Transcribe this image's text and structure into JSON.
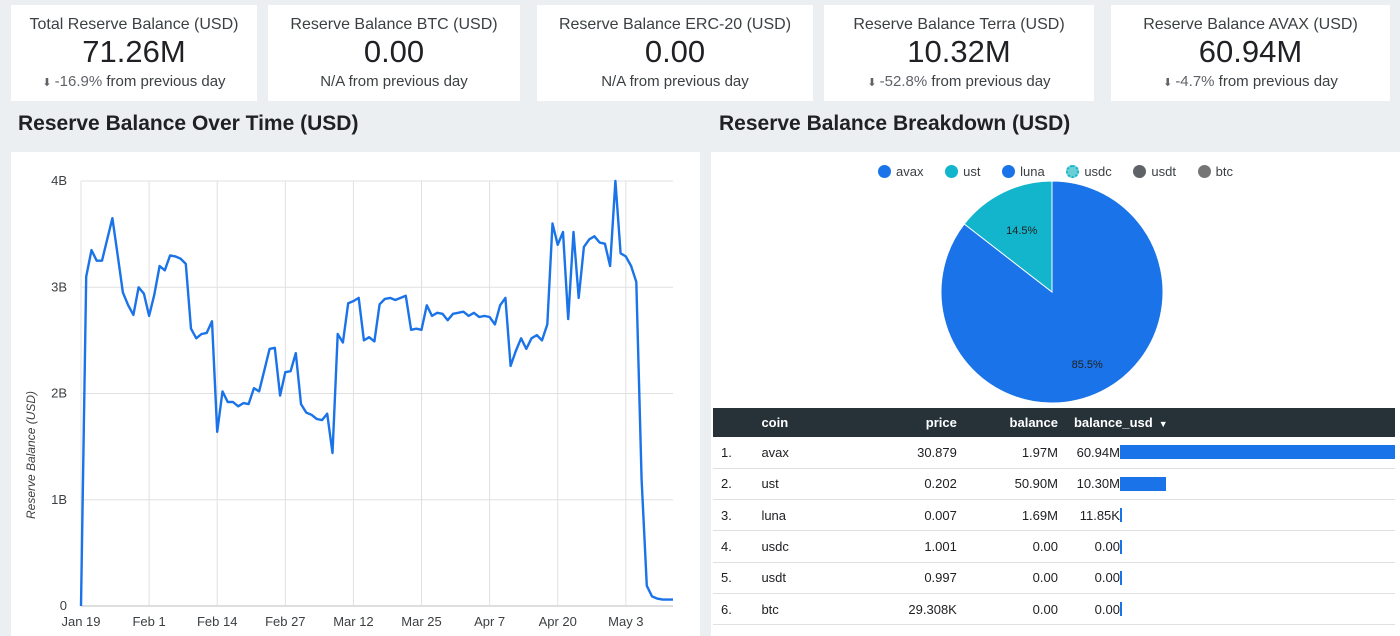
{
  "kpis": [
    {
      "title": "Total Reserve Balance (USD)",
      "value": "71.26M",
      "arrow": "down-arrow-icon",
      "delta": "-16.9%",
      "suffix": "from previous day"
    },
    {
      "title": "Reserve Balance BTC (USD)",
      "value": "0.00",
      "arrow": "",
      "delta": "N/A",
      "suffix": "from previous day"
    },
    {
      "title": "Reserve Balance ERC-20 (USD)",
      "value": "0.00",
      "arrow": "",
      "delta": "N/A",
      "suffix": "from previous day"
    },
    {
      "title": "Reserve Balance Terra (USD)",
      "value": "10.32M",
      "arrow": "down-arrow-icon",
      "delta": "-52.8%",
      "suffix": "from previous day"
    },
    {
      "title": "Reserve Balance AVAX (USD)",
      "value": "60.94M",
      "arrow": "down-arrow-icon",
      "delta": "-4.7%",
      "suffix": "from previous day"
    }
  ],
  "arrow_glyph": "⬇",
  "sections": {
    "left_title": "Reserve Balance Over Time (USD)",
    "right_title": "Reserve Balance Breakdown (USD)"
  },
  "colors": {
    "line": "#1a73e8",
    "avax": "#1a73e8",
    "ust": "#12b5cb",
    "luna": "#1a73e8",
    "usdc": "#6ccfd6",
    "usdt": "#5f6368",
    "btc": "#757575",
    "header": "#263238"
  },
  "chart_data": [
    {
      "type": "line",
      "ylabel": "Reserve Balance (USD)",
      "xlabel": "",
      "y_ticks": [
        "0",
        "1B",
        "2B",
        "3B",
        "4B"
      ],
      "ylim": [
        0,
        4000000000
      ],
      "x_ticks": [
        "Jan 19",
        "Feb 1",
        "Feb 14",
        "Feb 27",
        "Mar 12",
        "Mar 25",
        "Apr 7",
        "Apr 20",
        "May 3"
      ],
      "grid": true,
      "series": [
        {
          "x": [
            "2022-01-19",
            "2022-01-20",
            "2022-01-21",
            "2022-01-22",
            "2022-01-23",
            "2022-01-24",
            "2022-01-25",
            "2022-01-26",
            "2022-01-27",
            "2022-01-28",
            "2022-01-29",
            "2022-01-30",
            "2022-01-31",
            "2022-02-01",
            "2022-02-02",
            "2022-02-03",
            "2022-02-04",
            "2022-02-05",
            "2022-02-06",
            "2022-02-07",
            "2022-02-08",
            "2022-02-09",
            "2022-02-10",
            "2022-02-11",
            "2022-02-12",
            "2022-02-13",
            "2022-02-14",
            "2022-02-15",
            "2022-02-16",
            "2022-02-17",
            "2022-02-18",
            "2022-02-19",
            "2022-02-20",
            "2022-02-21",
            "2022-02-22",
            "2022-02-23",
            "2022-02-24",
            "2022-02-25",
            "2022-02-26",
            "2022-02-27",
            "2022-02-28",
            "2022-03-01",
            "2022-03-02",
            "2022-03-03",
            "2022-03-04",
            "2022-03-05",
            "2022-03-06",
            "2022-03-07",
            "2022-03-08",
            "2022-03-09",
            "2022-03-10",
            "2022-03-11",
            "2022-03-12",
            "2022-03-13",
            "2022-03-14",
            "2022-03-15",
            "2022-03-16",
            "2022-03-17",
            "2022-03-18",
            "2022-03-19",
            "2022-03-20",
            "2022-03-21",
            "2022-03-22",
            "2022-03-23",
            "2022-03-24",
            "2022-03-25",
            "2022-03-26",
            "2022-03-27",
            "2022-03-28",
            "2022-03-29",
            "2022-03-30",
            "2022-03-31",
            "2022-04-01",
            "2022-04-02",
            "2022-04-03",
            "2022-04-04",
            "2022-04-05",
            "2022-04-06",
            "2022-04-07",
            "2022-04-08",
            "2022-04-09",
            "2022-04-10",
            "2022-04-11",
            "2022-04-12",
            "2022-04-13",
            "2022-04-14",
            "2022-04-15",
            "2022-04-16",
            "2022-04-17",
            "2022-04-18",
            "2022-04-19",
            "2022-04-20",
            "2022-04-21",
            "2022-04-22",
            "2022-04-23",
            "2022-04-24",
            "2022-04-25",
            "2022-04-26",
            "2022-04-27",
            "2022-04-28",
            "2022-04-29",
            "2022-04-30",
            "2022-05-01",
            "2022-05-02",
            "2022-05-03",
            "2022-05-04",
            "2022-05-05",
            "2022-05-06",
            "2022-05-07",
            "2022-05-08",
            "2022-05-09",
            "2022-05-10",
            "2022-05-11",
            "2022-05-12"
          ],
          "y": [
            0,
            3100000000,
            3350000000,
            3250000000,
            3250000000,
            3450000000,
            3650000000,
            3300000000,
            2950000000,
            2830000000,
            2740000000,
            3000000000,
            2940000000,
            2730000000,
            2930000000,
            3200000000,
            3160000000,
            3300000000,
            3290000000,
            3270000000,
            3220000000,
            2610000000,
            2520000000,
            2560000000,
            2570000000,
            2680000000,
            1640000000,
            2020000000,
            1920000000,
            1920000000,
            1880000000,
            1910000000,
            1900000000,
            2050000000,
            2020000000,
            2220000000,
            2420000000,
            2430000000,
            1980000000,
            2200000000,
            2210000000,
            2380000000,
            1900000000,
            1820000000,
            1800000000,
            1760000000,
            1750000000,
            1810000000,
            1440000000,
            2560000000,
            2480000000,
            2850000000,
            2870000000,
            2900000000,
            2500000000,
            2530000000,
            2490000000,
            2840000000,
            2890000000,
            2900000000,
            2880000000,
            2900000000,
            2920000000,
            2600000000,
            2610000000,
            2600000000,
            2830000000,
            2730000000,
            2760000000,
            2750000000,
            2690000000,
            2750000000,
            2760000000,
            2770000000,
            2730000000,
            2760000000,
            2720000000,
            2730000000,
            2720000000,
            2650000000,
            2830000000,
            2900000000,
            2260000000,
            2400000000,
            2520000000,
            2420000000,
            2520000000,
            2550000000,
            2500000000,
            2650000000,
            3600000000,
            3400000000,
            3520000000,
            2700000000,
            3520000000,
            2900000000,
            3380000000,
            3450000000,
            3480000000,
            3420000000,
            3410000000,
            3200000000,
            4000000000,
            3320000000,
            3290000000,
            3200000000,
            3050000000,
            1190000000,
            190000000,
            90000000,
            70000000,
            60000000,
            60000000,
            60000000
          ],
          "name": ""
        }
      ]
    },
    {
      "type": "pie",
      "title": "",
      "legend_position": "top",
      "legend": [
        "avax",
        "ust",
        "luna",
        "usdc",
        "usdt",
        "btc"
      ],
      "slices": [
        {
          "label": "avax",
          "value": 85.5,
          "display": "85.5%"
        },
        {
          "label": "ust",
          "value": 14.5,
          "display": "14.5%"
        }
      ]
    },
    {
      "type": "table",
      "columns": [
        "coin",
        "price",
        "balance",
        "balance_usd"
      ],
      "sort_column": "balance_usd",
      "sort_order": "descending",
      "rows": [
        {
          "num": "1.",
          "coin": "avax",
          "price": "30.879",
          "balance": "1.97M",
          "balance_usd": "60.94M",
          "usd_value": 60940000
        },
        {
          "num": "2.",
          "coin": "ust",
          "price": "0.202",
          "balance": "50.90M",
          "balance_usd": "10.30M",
          "usd_value": 10300000
        },
        {
          "num": "3.",
          "coin": "luna",
          "price": "0.007",
          "balance": "1.69M",
          "balance_usd": "11.85K",
          "usd_value": 11850
        },
        {
          "num": "4.",
          "coin": "usdc",
          "price": "1.001",
          "balance": "0.00",
          "balance_usd": "0.00",
          "usd_value": 0
        },
        {
          "num": "5.",
          "coin": "usdt",
          "price": "0.997",
          "balance": "0.00",
          "balance_usd": "0.00",
          "usd_value": 0
        },
        {
          "num": "6.",
          "coin": "btc",
          "price": "29.308K",
          "balance": "0.00",
          "balance_usd": "0.00",
          "usd_value": 0
        }
      ]
    }
  ]
}
